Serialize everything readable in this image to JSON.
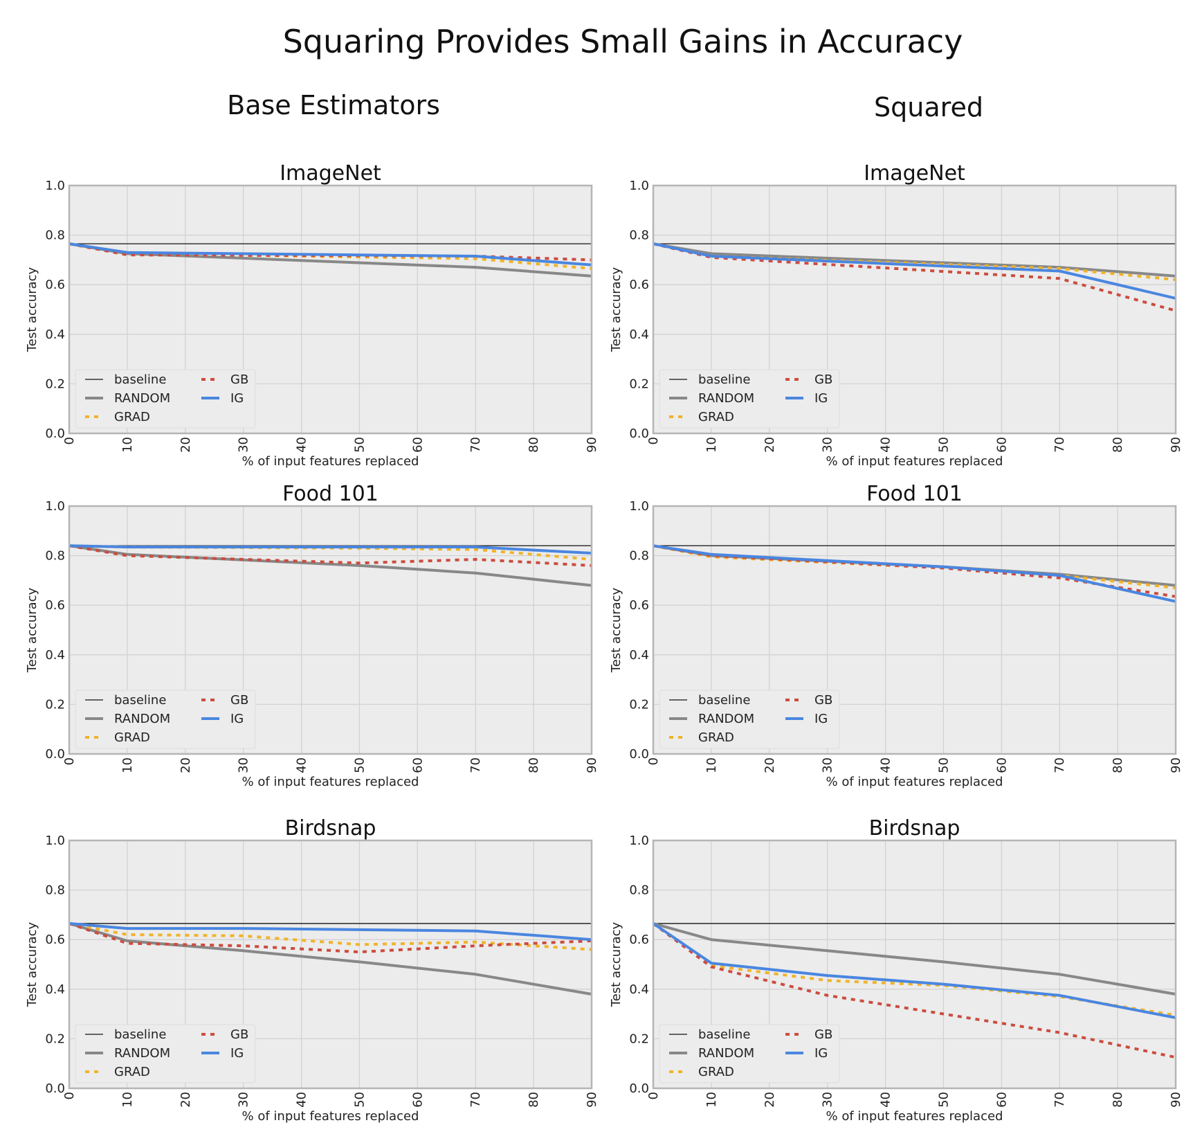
{
  "figure": {
    "title": "Squaring Provides Small Gains in Accuracy",
    "column_titles": [
      "Base Estimators",
      "Squared"
    ]
  },
  "colors": {
    "baseline": "#111111",
    "RANDOM": "#888888",
    "GRAD": "#f0b429",
    "GB": "#cc4c3f",
    "IG": "#4a86e0",
    "plot_bg": "#ececec",
    "grid": "#d2d2d2",
    "frame": "#b5b5b5"
  },
  "chart_data": [
    {
      "type": "line",
      "column": 0,
      "row": 0,
      "title": "ImageNet",
      "xlabel": "% of input features replaced",
      "ylabel": "Test accuracy",
      "xlim": [
        0,
        90
      ],
      "ylim": [
        0,
        1.0
      ],
      "xticks": [
        0,
        10,
        20,
        30,
        40,
        50,
        60,
        70,
        80,
        90
      ],
      "yticks": [
        0.0,
        0.2,
        0.4,
        0.6,
        0.8,
        1.0
      ],
      "x": [
        0,
        10,
        70,
        90
      ],
      "baseline": 0.765,
      "legend": [
        "baseline",
        "RANDOM",
        "GRAD",
        "GB",
        "IG"
      ],
      "series": [
        {
          "name": "RANDOM",
          "values": [
            0.765,
            0.725,
            0.67,
            0.635
          ]
        },
        {
          "name": "GRAD",
          "values": [
            0.765,
            0.725,
            0.705,
            0.665
          ]
        },
        {
          "name": "GB",
          "values": [
            0.765,
            0.72,
            0.715,
            0.7
          ]
        },
        {
          "name": "IG",
          "values": [
            0.765,
            0.73,
            0.715,
            0.68
          ]
        }
      ]
    },
    {
      "type": "line",
      "column": 1,
      "row": 0,
      "title": "ImageNet",
      "xlabel": "% of input features replaced",
      "ylabel": "Test accuracy",
      "xlim": [
        0,
        90
      ],
      "ylim": [
        0,
        1.0
      ],
      "xticks": [
        0,
        10,
        20,
        30,
        40,
        50,
        60,
        70,
        80,
        90
      ],
      "yticks": [
        0.0,
        0.2,
        0.4,
        0.6,
        0.8,
        1.0
      ],
      "x": [
        0,
        10,
        70,
        90
      ],
      "baseline": 0.765,
      "legend": [
        "baseline",
        "RANDOM",
        "GRAD",
        "GB",
        "IG"
      ],
      "series": [
        {
          "name": "RANDOM",
          "values": [
            0.765,
            0.725,
            0.67,
            0.635
          ]
        },
        {
          "name": "GRAD",
          "values": [
            0.765,
            0.715,
            0.665,
            0.62
          ]
        },
        {
          "name": "GB",
          "values": [
            0.765,
            0.71,
            0.625,
            0.495
          ]
        },
        {
          "name": "IG",
          "values": [
            0.765,
            0.715,
            0.655,
            0.545
          ]
        }
      ]
    },
    {
      "type": "line",
      "column": 0,
      "row": 1,
      "title": "Food 101",
      "xlabel": "% of input features replaced",
      "ylabel": "Test accuracy",
      "xlim": [
        0,
        90
      ],
      "ylim": [
        0,
        1.0
      ],
      "xticks": [
        0,
        10,
        20,
        30,
        40,
        50,
        60,
        70,
        80,
        90
      ],
      "yticks": [
        0.0,
        0.2,
        0.4,
        0.6,
        0.8,
        1.0
      ],
      "x": [
        0,
        10,
        50,
        70,
        90
      ],
      "baseline": 0.84,
      "legend": [
        "baseline",
        "RANDOM",
        "GRAD",
        "GB",
        "IG"
      ],
      "series": [
        {
          "name": "RANDOM",
          "values": [
            0.84,
            0.805,
            0.76,
            0.73,
            0.68
          ]
        },
        {
          "name": "GRAD",
          "values": [
            0.84,
            0.835,
            0.83,
            0.825,
            0.785
          ]
        },
        {
          "name": "GB",
          "values": [
            0.84,
            0.8,
            0.77,
            0.785,
            0.76
          ]
        },
        {
          "name": "IG",
          "values": [
            0.84,
            0.835,
            0.835,
            0.835,
            0.81
          ]
        }
      ]
    },
    {
      "type": "line",
      "column": 1,
      "row": 1,
      "title": "Food 101",
      "xlabel": "% of input features replaced",
      "ylabel": "Test accuracy",
      "xlim": [
        0,
        90
      ],
      "ylim": [
        0,
        1.0
      ],
      "xticks": [
        0,
        10,
        20,
        30,
        40,
        50,
        60,
        70,
        80,
        90
      ],
      "yticks": [
        0.0,
        0.2,
        0.4,
        0.6,
        0.8,
        1.0
      ],
      "x": [
        0,
        10,
        50,
        70,
        90
      ],
      "baseline": 0.84,
      "legend": [
        "baseline",
        "RANDOM",
        "GRAD",
        "GB",
        "IG"
      ],
      "series": [
        {
          "name": "RANDOM",
          "values": [
            0.84,
            0.8,
            0.755,
            0.725,
            0.68
          ]
        },
        {
          "name": "GRAD",
          "values": [
            0.84,
            0.795,
            0.75,
            0.72,
            0.67
          ]
        },
        {
          "name": "GB",
          "values": [
            0.84,
            0.8,
            0.75,
            0.71,
            0.635
          ]
        },
        {
          "name": "IG",
          "values": [
            0.84,
            0.805,
            0.755,
            0.72,
            0.615
          ]
        }
      ]
    },
    {
      "type": "line",
      "column": 0,
      "row": 2,
      "title": "Birdsnap",
      "xlabel": "% of input features replaced",
      "ylabel": "Test accuracy",
      "xlim": [
        0,
        90
      ],
      "ylim": [
        0,
        1.0
      ],
      "xticks": [
        0,
        10,
        20,
        30,
        40,
        50,
        60,
        70,
        80,
        90
      ],
      "yticks": [
        0.0,
        0.2,
        0.4,
        0.6,
        0.8,
        1.0
      ],
      "x": [
        0,
        10,
        30,
        50,
        70,
        90
      ],
      "baseline": 0.665,
      "legend": [
        "baseline",
        "RANDOM",
        "GRAD",
        "GB",
        "IG"
      ],
      "series": [
        {
          "name": "RANDOM",
          "values": [
            0.665,
            0.595,
            0.555,
            0.51,
            0.46,
            0.38
          ]
        },
        {
          "name": "GRAD",
          "values": [
            0.665,
            0.62,
            0.615,
            0.58,
            0.59,
            0.56
          ]
        },
        {
          "name": "GB",
          "values": [
            0.665,
            0.585,
            0.575,
            0.55,
            0.575,
            0.595
          ]
        },
        {
          "name": "IG",
          "values": [
            0.665,
            0.645,
            0.645,
            0.64,
            0.635,
            0.6
          ]
        }
      ]
    },
    {
      "type": "line",
      "column": 1,
      "row": 2,
      "title": "Birdsnap",
      "xlabel": "% of input features replaced",
      "ylabel": "Test accuracy",
      "xlim": [
        0,
        90
      ],
      "ylim": [
        0,
        1.0
      ],
      "xticks": [
        0,
        10,
        20,
        30,
        40,
        50,
        60,
        70,
        80,
        90
      ],
      "yticks": [
        0.0,
        0.2,
        0.4,
        0.6,
        0.8,
        1.0
      ],
      "x": [
        0,
        10,
        30,
        50,
        70,
        90
      ],
      "baseline": 0.665,
      "legend": [
        "baseline",
        "RANDOM",
        "GRAD",
        "GB",
        "IG"
      ],
      "series": [
        {
          "name": "RANDOM",
          "values": [
            0.665,
            0.6,
            0.555,
            0.51,
            0.46,
            0.38
          ]
        },
        {
          "name": "GRAD",
          "values": [
            0.665,
            0.495,
            0.435,
            0.415,
            0.37,
            0.295
          ]
        },
        {
          "name": "GB",
          "values": [
            0.665,
            0.49,
            0.375,
            0.3,
            0.225,
            0.125
          ]
        },
        {
          "name": "IG",
          "values": [
            0.665,
            0.505,
            0.455,
            0.42,
            0.375,
            0.285
          ]
        }
      ]
    }
  ]
}
